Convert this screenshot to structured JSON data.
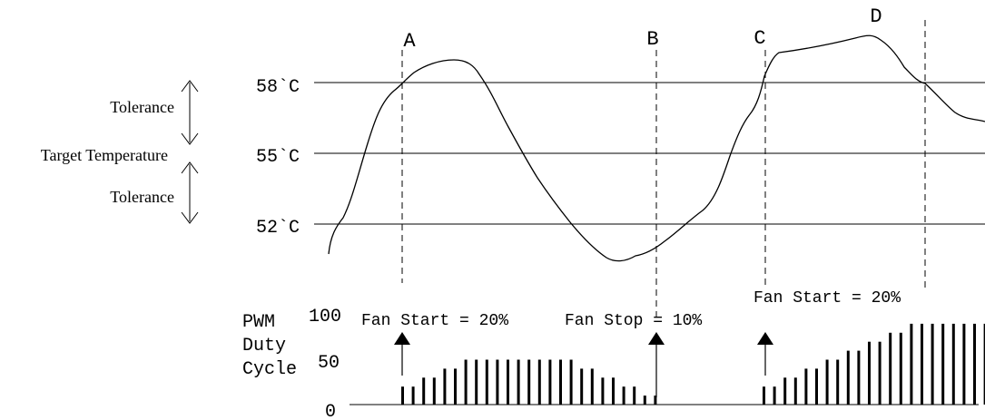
{
  "labels": {
    "tolerance_top": "Tolerance",
    "target_temperature": "Target Temperature",
    "tolerance_bottom": "Tolerance"
  },
  "temps": {
    "high": "58`C",
    "target": "55`C",
    "low": "52`C"
  },
  "markers": {
    "a": "A",
    "b": "B",
    "c": "C",
    "d": "D"
  },
  "pwm": {
    "label_line1": "PWM",
    "label_line2": "Duty",
    "label_line3": "Cycle",
    "tick_100": "100",
    "tick_50": "50",
    "tick_0": "0"
  },
  "annotations": {
    "fan_start_1": "Fan Start = 20%",
    "fan_stop": "Fan Stop = 10%",
    "fan_start_2": "Fan Start = 20%"
  },
  "chart_data": {
    "type": "line",
    "temperature_curve": {
      "reference_levels_c": [
        52,
        55,
        58
      ]
    },
    "pwm_bars": {
      "ylim": [
        0,
        100
      ],
      "segment_1": [
        20,
        20,
        30,
        30,
        40,
        40,
        50,
        50,
        50,
        50,
        50,
        50,
        50,
        50,
        50,
        50,
        50,
        40,
        40,
        30,
        30,
        20,
        20,
        10,
        10
      ],
      "segment_2": [
        20,
        20,
        30,
        30,
        40,
        40,
        50,
        50,
        60,
        60,
        70,
        70,
        80,
        80,
        90,
        90,
        90,
        90,
        90,
        90,
        90,
        90
      ]
    }
  }
}
